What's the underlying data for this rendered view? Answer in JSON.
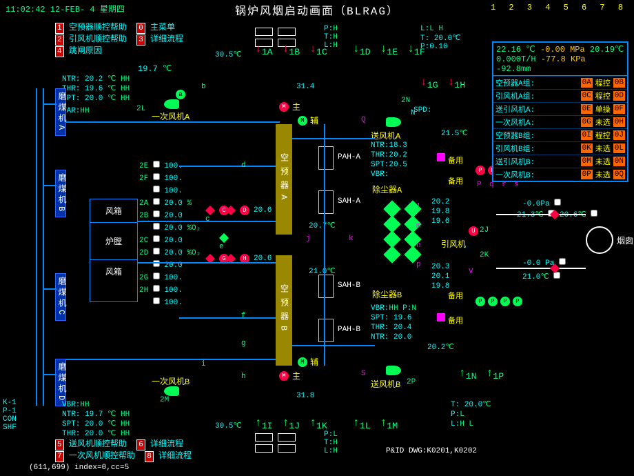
{
  "header": {
    "clock": "11:02:42 12-FEB- 4 星期四",
    "title": "锅炉风烟启动画面（BLRAG）",
    "indexStr": "1 2 3 4 5 6 7 8"
  },
  "menu": {
    "items": [
      {
        "n": "1",
        "t": "空预器顺控帮助"
      },
      {
        "n": "0",
        "t": "主菜单"
      },
      {
        "n": "2",
        "t": "引风机顺控帮助"
      },
      {
        "n": "3",
        "t": "详细流程"
      },
      {
        "n": "4",
        "t": "跳闸原因"
      }
    ]
  },
  "menu2": {
    "items": [
      {
        "n": "5",
        "t": "送风机顺控帮助"
      },
      {
        "n": "6",
        "t": "详细流程"
      },
      {
        "n": "7",
        "t": "一次风机顺控帮助"
      },
      {
        "n": "8",
        "t": "详细流程"
      }
    ]
  },
  "leftVals": {
    "ntr": "NTR: 20.2",
    "thr": "THR: 19.6",
    "spt": "SPT: 20.0",
    "tempLone": "19.7",
    "var": "VAR:",
    "fanA": "一次风机A",
    "fanB": "一次风机B",
    "ntrB": "NTR: 19.7",
    "thrB": "SPT: 20.0",
    "sptB": "THR: 20.0",
    "vbrB": "VBR:"
  },
  "fengxiang": {
    "top": "风箱",
    "mid": "炉膛",
    "bot": "风箱"
  },
  "leftPct": [
    {
      "tag": "2E",
      "v": "100."
    },
    {
      "tag": "2F",
      "v": "100."
    },
    {
      "tag": "",
      "v": "100."
    },
    {
      "tag": "2A",
      "v": "20.0"
    },
    {
      "tag": "2B",
      "v": "20.0"
    },
    {
      "tag": "",
      "v": "20.0"
    },
    {
      "tag": "2C",
      "v": "20.0"
    },
    {
      "tag": "2D",
      "v": "20.0"
    },
    {
      "tag": "",
      "v": "20.0"
    },
    {
      "tag": "2G",
      "v": "100."
    },
    {
      "tag": "2H",
      "v": "100."
    },
    {
      "tag": "",
      "v": "100."
    }
  ],
  "vesselA": "空预器A",
  "vesselB": "空预器B",
  "centerTemps": {
    "topIn": "30.5",
    "t314": "31.4",
    "t207": "20.7",
    "t210": "21.0",
    "t318": "31.8",
    "botOut": "30.5"
  },
  "pah": {
    "a": "PAH-A",
    "sa": "SAH-A",
    "sb": "SAH-B",
    "b": "PAH-B"
  },
  "rightUnit": {
    "sfjA": "送风机A",
    "sfjB": "送风机B",
    "ccqA": "除尘器A",
    "ccqB": "除尘器B",
    "yfj": "引风机",
    "ntr": "NTR:18.3",
    "thr": "THR:20.2",
    "spt": "SPT:20.5",
    "vbr": "VBR:",
    "ntrB": "NTR: 20.0",
    "thrB": "THR: 20.4",
    "sptB": "SPT: 19.6",
    "vbrB": "VBR:",
    "t215": "21.5",
    "bak": "备用",
    "spd": "SPD:",
    "t202": "20.2",
    "v198": "19.8",
    "v206": "20.6",
    "v196": "19.6",
    "v201": "20.1",
    "v203": "20.3",
    "v199": "19.8",
    "t213": "21.3",
    "pP": "-0.0Pa",
    "pPb": "-0.0 Pa"
  },
  "chimney": "烟囱",
  "pids": "P&ID DWG:K0201,K0202",
  "topR": {
    "P": "P:",
    "T": "T:",
    "L": "L:",
    "P10": "P:0.10",
    "T20": "T: 20.0",
    "Tp": "T:",
    "Lp": "L:"
  },
  "status": {
    "l1": "22.16 ℃",
    "l1b": "-0.00 MPa",
    "l1c": "20.19℃",
    "l2": "0.000T/H",
    "l2b": "-77.8 KPa",
    "l2c": "-92.8mm",
    "rows": [
      {
        "lbl": "空预器A组:",
        "c1": "0A",
        "mid": "程控",
        "c2": "0B"
      },
      {
        "lbl": "引风机A组:",
        "c1": "0C",
        "mid": "程控",
        "c2": "0D"
      },
      {
        "lbl": "送引风机A:",
        "c1": "0E",
        "mid": "单操",
        "c2": "0F"
      },
      {
        "lbl": "一次风机A:",
        "c1": "0G",
        "mid": "未选",
        "c2": "0H"
      },
      {
        "lbl": "空预器B组:",
        "c1": "0I",
        "mid": "程控",
        "c2": "0J"
      },
      {
        "lbl": "引风机B组:",
        "c1": "0K",
        "mid": "未选",
        "c2": "0L"
      },
      {
        "lbl": "送引风机B:",
        "c1": "0M",
        "mid": "未选",
        "c2": "0N"
      },
      {
        "lbl": "一次风机B:",
        "c1": "0P",
        "mid": "未选",
        "c2": "0Q"
      }
    ]
  },
  "side": {
    "a": "磨煤机A",
    "b": "磨煤机B",
    "c": "磨煤机C",
    "d": "磨煤机D"
  },
  "footer": {
    "coord": "(611,699) index=0,cc=5",
    "kl": "K-1\nP-1\nCON\nSHF"
  },
  "tags": {
    "A1": "1A",
    "B1": "1B",
    "C1": "1C",
    "D1": "1D",
    "E1": "1E",
    "F1": "1F",
    "G1": "1G",
    "H1": "1H",
    "I1": "1I",
    "J1": "1J",
    "K1": "1K",
    "L1": "1L",
    "M1": "1M",
    "N1": "1N",
    "P1": "1P",
    "a": "a",
    "b": "b",
    "c": "c",
    "d": "d",
    "e": "e",
    "f": "f",
    "g": "g",
    "h": "h",
    "i": "i",
    "j": "j",
    "k": "k",
    "l": "l",
    "m": "m",
    "n": "n",
    "p": "p",
    "q": "q",
    "r": "r",
    "s": "s",
    "M": "M",
    "N": "N",
    "O": "O",
    "P": "P",
    "Q": "Q",
    "R": "R",
    "S": "S",
    "T": "T",
    "V": "V",
    "W": "W",
    "U": "U",
    "zhu": "主",
    "fu": "辅",
    "E2": "2E",
    "F2": "2F",
    "A2": "2A",
    "B2": "2B",
    "C2": "2C",
    "D2": "2D",
    "G2": "2G",
    "H2": "2H",
    "I2": "I",
    "J2": "J",
    "K2": "2K",
    "L2": "2L",
    "M2": "2M",
    "N2": "2N",
    "P2": "2P",
    "pct": "%",
    "pct206": "20.6",
    "pct202": "%O₂",
    "unitC": "℃",
    "unitHH": "HH",
    "unitPa": "Pa",
    "HL": "H",
    "LL": "L",
    "LH": "L H"
  }
}
